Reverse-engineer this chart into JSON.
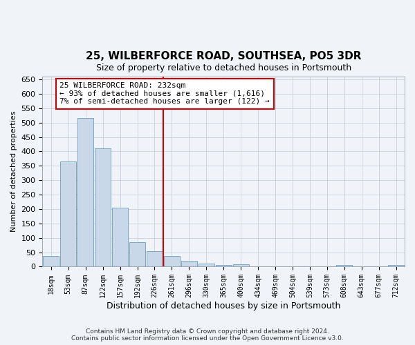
{
  "title": "25, WILBERFORCE ROAD, SOUTHSEA, PO5 3DR",
  "subtitle": "Size of property relative to detached houses in Portsmouth",
  "xlabel": "Distribution of detached houses by size in Portsmouth",
  "ylabel": "Number of detached properties",
  "bar_labels": [
    "18sqm",
    "53sqm",
    "87sqm",
    "122sqm",
    "157sqm",
    "192sqm",
    "226sqm",
    "261sqm",
    "296sqm",
    "330sqm",
    "365sqm",
    "400sqm",
    "434sqm",
    "469sqm",
    "504sqm",
    "539sqm",
    "573sqm",
    "608sqm",
    "643sqm",
    "677sqm",
    "712sqm"
  ],
  "bar_values": [
    37,
    365,
    515,
    410,
    205,
    85,
    53,
    37,
    20,
    10,
    6,
    8,
    2,
    0,
    2,
    0,
    0,
    5,
    0,
    0,
    5
  ],
  "bar_color": "#c8d8e8",
  "bar_edge_color": "#6a9ec0",
  "vline_color": "#cc0000",
  "annotation_text": "25 WILBERFORCE ROAD: 232sqm\n← 93% of detached houses are smaller (1,616)\n7% of semi-detached houses are larger (122) →",
  "annotation_box_color": "#ffffff",
  "annotation_box_edge_color": "#cc0000",
  "ylim": [
    0,
    660
  ],
  "yticks": [
    0,
    50,
    100,
    150,
    200,
    250,
    300,
    350,
    400,
    450,
    500,
    550,
    600,
    650
  ],
  "footer1": "Contains HM Land Registry data © Crown copyright and database right 2024.",
  "footer2": "Contains public sector information licensed under the Open Government Licence v3.0.",
  "background_color": "#f0f4f8",
  "grid_color": "#c0c8d8",
  "title_fontsize": 11,
  "subtitle_fontsize": 9,
  "vline_bar_index": 6
}
